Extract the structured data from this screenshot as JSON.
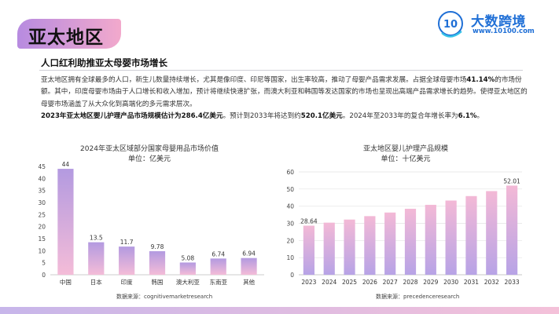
{
  "title": "亚太地区",
  "brand": {
    "name": "大数跨境",
    "url": "www.10100.com",
    "mark": "10"
  },
  "subtitle": "人口红利助推亚太母婴市场增长",
  "paragraph": {
    "p1a": "亚太地区拥有全球最多的人口，新生儿数量持续增长，尤其是像印度、印尼等国家，出生率较高，推动了母婴产品需求发展。占据全球母婴市场",
    "p1b": "41.14%",
    "p1c": "的市场份额。其中，印度母婴市场由于人口增长和收入增加，预计将继续快速扩张，而澳大利亚和韩国等发达国家的市场也呈现出高端产品需求增长的趋势。使得亚太地区的母婴市场涵盖了从大众化到高端化的多元需求层次。",
    "p2a": "2023年亚太地区婴儿护理产品市场规模估计为",
    "p2b": "286.4亿美元",
    "p2c": "。预计到2033年将达到约",
    "p2d": "520.1亿美元",
    "p2e": "。2024年至2033年的复合年增长率为",
    "p2f": "6.1%",
    "p2g": "。"
  },
  "chart_data": [
    {
      "type": "bar",
      "title": "2024年亚太区域部分国家母婴用品市场价值",
      "unit": "单位：亿美元",
      "categories": [
        "中国",
        "日本",
        "印度",
        "韩国",
        "澳大利亚",
        "东南亚",
        "其他"
      ],
      "values": [
        44,
        13.5,
        11.7,
        9.78,
        5.08,
        6.74,
        6.94
      ],
      "value_labels": [
        "44",
        "13.5",
        "11.7",
        "9.78",
        "5.08",
        "6.74",
        "6.94"
      ],
      "ylim": [
        0,
        45
      ],
      "yticks": [
        "0",
        "5",
        "10",
        "15",
        "20",
        "25",
        "30",
        "35",
        "40",
        "45"
      ],
      "grid": false,
      "source": "数据来源：cognitivemarketresearch"
    },
    {
      "type": "bar",
      "title": "亚太地区婴儿护理产品规模",
      "unit": "单位：十亿美元",
      "categories": [
        "2023",
        "2024",
        "2025",
        "2026",
        "2027",
        "2028",
        "2029",
        "2030",
        "2031",
        "2032",
        "2033"
      ],
      "values": [
        28.64,
        30.4,
        32.2,
        34.2,
        36.3,
        38.5,
        40.8,
        43.3,
        45.9,
        48.8,
        52.01
      ],
      "value_labels": [
        "28.64",
        "",
        "",
        "",
        "",
        "",
        "",
        "",
        "",
        "",
        "52.01"
      ],
      "ylim": [
        0,
        60
      ],
      "yticks": [
        "0",
        "10",
        "20",
        "30",
        "40",
        "50",
        "60"
      ],
      "grid": true,
      "source": "数据来源：precedenceresearch"
    }
  ],
  "colors": {
    "accent_purple": "#b78be0",
    "accent_pink": "#f2a9cc",
    "brand_blue": "#1f6fd6",
    "bar1_top": "#b39ae0",
    "bar1_bottom": "#f4bcd8",
    "bar2_top": "#f3b9d6",
    "bar2_bottom": "#b7a3e6"
  }
}
